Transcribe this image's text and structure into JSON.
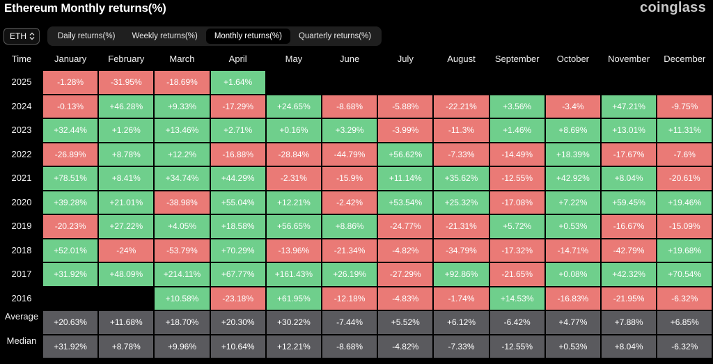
{
  "header": {
    "title": "Ethereum Monthly returns(%)",
    "brand": "coinglass",
    "asset": "ETH"
  },
  "tabs": [
    {
      "label": "Daily returns(%)",
      "active": false
    },
    {
      "label": "Weekly returns(%)",
      "active": false
    },
    {
      "label": "Monthly returns(%)",
      "active": true
    },
    {
      "label": "Quarterly returns(%)",
      "active": false
    }
  ],
  "colors": {
    "positive": "#6fcf8c",
    "negative": "#ea7a76",
    "summary": "#5a5a5e",
    "background": "#000000"
  },
  "chart_data": {
    "type": "heatmap",
    "corner_label": "Time",
    "columns": [
      "January",
      "February",
      "March",
      "April",
      "May",
      "June",
      "July",
      "August",
      "September",
      "October",
      "November",
      "December"
    ],
    "rows": [
      {
        "label": "2025",
        "values": [
          "-1.28%",
          "-31.95%",
          "-18.69%",
          "+1.64%",
          "",
          "",
          "",
          "",
          "",
          "",
          "",
          ""
        ]
      },
      {
        "label": "2024",
        "values": [
          "-0.13%",
          "+46.28%",
          "+9.33%",
          "-17.29%",
          "+24.65%",
          "-8.68%",
          "-5.88%",
          "-22.21%",
          "+3.56%",
          "-3.4%",
          "+47.21%",
          "-9.75%"
        ]
      },
      {
        "label": "2023",
        "values": [
          "+32.44%",
          "+1.26%",
          "+13.46%",
          "+2.71%",
          "+0.16%",
          "+3.29%",
          "-3.99%",
          "-11.3%",
          "+1.46%",
          "+8.69%",
          "+13.01%",
          "+11.31%"
        ]
      },
      {
        "label": "2022",
        "values": [
          "-26.89%",
          "+8.78%",
          "+12.2%",
          "-16.88%",
          "-28.84%",
          "-44.79%",
          "+56.62%",
          "-7.33%",
          "-14.49%",
          "+18.39%",
          "-17.67%",
          "-7.6%"
        ]
      },
      {
        "label": "2021",
        "values": [
          "+78.51%",
          "+8.41%",
          "+34.74%",
          "+44.29%",
          "-2.31%",
          "-15.9%",
          "+11.14%",
          "+35.62%",
          "-12.55%",
          "+42.92%",
          "+8.04%",
          "-20.61%"
        ]
      },
      {
        "label": "2020",
        "values": [
          "+39.28%",
          "+21.01%",
          "-38.98%",
          "+55.04%",
          "+12.21%",
          "-2.42%",
          "+53.54%",
          "+25.32%",
          "-17.08%",
          "+7.22%",
          "+59.45%",
          "+19.46%"
        ]
      },
      {
        "label": "2019",
        "values": [
          "-20.23%",
          "+27.22%",
          "+4.05%",
          "+18.58%",
          "+56.65%",
          "+8.86%",
          "-24.77%",
          "-21.31%",
          "+5.72%",
          "+0.53%",
          "-16.67%",
          "-15.09%"
        ]
      },
      {
        "label": "2018",
        "values": [
          "+52.01%",
          "-24%",
          "-53.79%",
          "+70.29%",
          "-13.96%",
          "-21.34%",
          "-4.82%",
          "-34.79%",
          "-17.32%",
          "-14.71%",
          "-42.79%",
          "+19.68%"
        ]
      },
      {
        "label": "2017",
        "values": [
          "+31.92%",
          "+48.09%",
          "+214.11%",
          "+67.77%",
          "+161.43%",
          "+26.19%",
          "-27.29%",
          "+92.86%",
          "-21.65%",
          "+0.08%",
          "+42.32%",
          "+70.54%"
        ]
      },
      {
        "label": "2016",
        "values": [
          "",
          "",
          "+10.58%",
          "-23.18%",
          "+61.95%",
          "-12.18%",
          "-4.83%",
          "-1.74%",
          "+14.53%",
          "-16.83%",
          "-21.95%",
          "-6.32%"
        ]
      }
    ],
    "summary_rows": [
      {
        "label": "Average",
        "values": [
          "+20.63%",
          "+11.68%",
          "+18.70%",
          "+20.30%",
          "+30.22%",
          "-7.44%",
          "+5.52%",
          "+6.12%",
          "-6.42%",
          "+4.77%",
          "+7.88%",
          "+6.85%"
        ]
      },
      {
        "label": "Median",
        "values": [
          "+31.92%",
          "+8.78%",
          "+9.96%",
          "+10.64%",
          "+12.21%",
          "-8.68%",
          "-4.82%",
          "-7.33%",
          "-12.55%",
          "+0.53%",
          "+8.04%",
          "-6.32%"
        ]
      }
    ]
  }
}
